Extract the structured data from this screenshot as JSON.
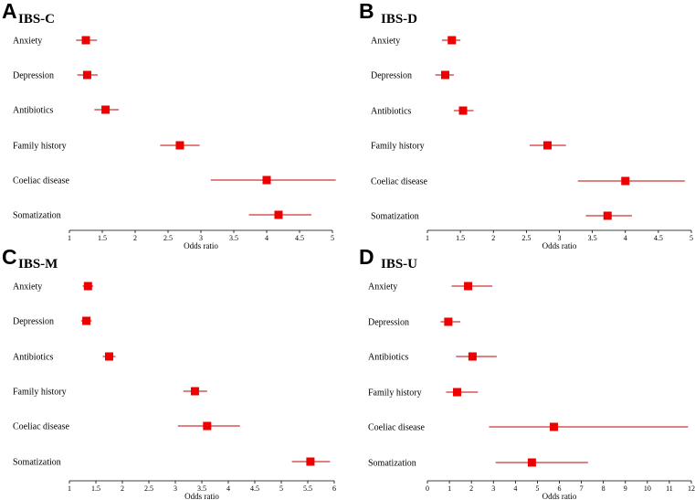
{
  "chart_data": [
    {
      "type": "forest",
      "panel": "A",
      "title": "IBS-C",
      "xlabel": "Odds ratio",
      "xlim": [
        1,
        5
      ],
      "ticks": [
        1,
        1.5,
        2,
        2.5,
        3,
        3.5,
        4,
        4.5,
        5
      ],
      "tick_labels": [
        "1",
        "1.5",
        "2",
        "2.5",
        "3",
        "3.5",
        "4",
        "4.5",
        "5"
      ],
      "rows": [
        {
          "label": "Anxiety",
          "or": 1.25,
          "lo": 1.1,
          "hi": 1.42
        },
        {
          "label": "Depression",
          "or": 1.27,
          "lo": 1.12,
          "hi": 1.43
        },
        {
          "label": "Antibiotics",
          "or": 1.55,
          "lo": 1.38,
          "hi": 1.75
        },
        {
          "label": "Family history",
          "or": 2.68,
          "lo": 2.38,
          "hi": 2.98
        },
        {
          "label": "Coeliac disease",
          "or": 4.0,
          "lo": 3.15,
          "hi": 5.05
        },
        {
          "label": "Somatization",
          "or": 4.18,
          "lo": 3.73,
          "hi": 4.68
        }
      ]
    },
    {
      "type": "forest",
      "panel": "B",
      "title": "IBS-D",
      "xlabel": "Odds ratio",
      "xlim": [
        1,
        5
      ],
      "ticks": [
        1,
        1.5,
        2,
        2.5,
        3,
        3.5,
        4,
        4.5,
        5
      ],
      "tick_labels": [
        "1",
        "1.5",
        "2",
        "2.5",
        "3",
        "3.5",
        "4",
        "4.5",
        "5"
      ],
      "rows": [
        {
          "label": "Anxiety",
          "or": 1.37,
          "lo": 1.22,
          "hi": 1.5
        },
        {
          "label": "Depression",
          "or": 1.27,
          "lo": 1.12,
          "hi": 1.4
        },
        {
          "label": "Antibiotics",
          "or": 1.54,
          "lo": 1.4,
          "hi": 1.7
        },
        {
          "label": "Family history",
          "or": 2.82,
          "lo": 2.55,
          "hi": 3.1
        },
        {
          "label": "Coeliac disease",
          "or": 4.0,
          "lo": 3.28,
          "hi": 4.9
        },
        {
          "label": "Somatization",
          "or": 3.73,
          "lo": 3.4,
          "hi": 4.1
        }
      ]
    },
    {
      "type": "forest",
      "panel": "C",
      "title": "IBS-M",
      "xlabel": "Odds ratio",
      "xlim": [
        1,
        6
      ],
      "ticks": [
        1,
        1.5,
        2,
        2.5,
        3,
        3.5,
        4,
        4.5,
        5,
        5.5,
        6
      ],
      "tick_labels": [
        "1",
        "1.5",
        "2",
        "2.5",
        "3",
        "3.5",
        "4",
        "4.5",
        "5",
        "5.5",
        "6"
      ],
      "rows": [
        {
          "label": "Anxiety",
          "or": 1.35,
          "lo": 1.25,
          "hi": 1.45
        },
        {
          "label": "Depression",
          "or": 1.32,
          "lo": 1.22,
          "hi": 1.42
        },
        {
          "label": "Antibiotics",
          "or": 1.75,
          "lo": 1.63,
          "hi": 1.87
        },
        {
          "label": "Family history",
          "or": 3.37,
          "lo": 3.15,
          "hi": 3.6
        },
        {
          "label": "Coeliac disease",
          "or": 3.6,
          "lo": 3.05,
          "hi": 4.22
        },
        {
          "label": "Somatization",
          "or": 5.55,
          "lo": 5.2,
          "hi": 5.92
        }
      ]
    },
    {
      "type": "forest",
      "panel": "D",
      "title": "IBS-U",
      "xlabel": "Odds ratio",
      "xlim": [
        0,
        12
      ],
      "ticks": [
        0,
        1,
        2,
        3,
        4,
        5,
        6,
        7,
        8,
        9,
        10,
        11,
        12
      ],
      "tick_labels": [
        "0",
        "1",
        "2",
        "3",
        "4",
        "5",
        "6",
        "7",
        "8",
        "9",
        "10",
        "11",
        "12"
      ],
      "rows": [
        {
          "label": "Anxiety",
          "or": 1.85,
          "lo": 1.1,
          "hi": 2.95
        },
        {
          "label": "Depression",
          "or": 0.95,
          "lo": 0.6,
          "hi": 1.5
        },
        {
          "label": "Antibiotics",
          "or": 2.05,
          "lo": 1.3,
          "hi": 3.15
        },
        {
          "label": "Family history",
          "or": 1.35,
          "lo": 0.85,
          "hi": 2.3
        },
        {
          "label": "Coeliac disease",
          "or": 5.75,
          "lo": 2.8,
          "hi": 11.85
        },
        {
          "label": "Somatization",
          "or": 4.75,
          "lo": 3.1,
          "hi": 7.3
        }
      ]
    }
  ]
}
